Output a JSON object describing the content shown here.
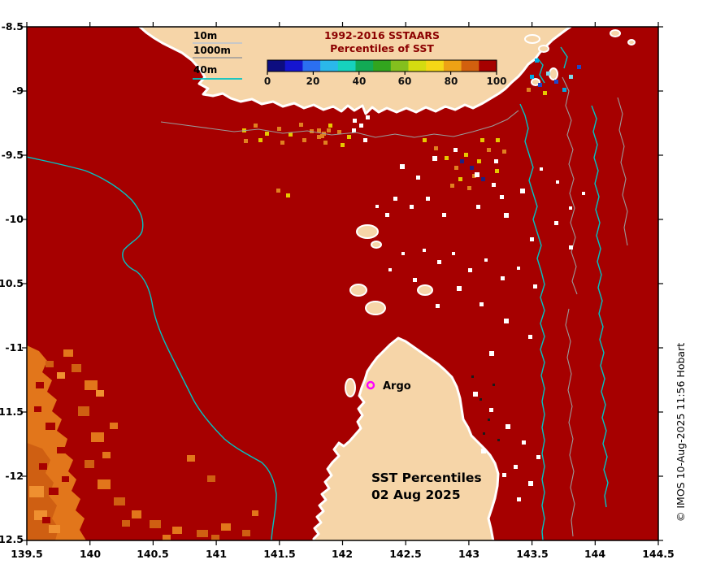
{
  "figure": {
    "title_line1": "1992-2016 SSTAARS",
    "title_line2": "Percentiles of SST",
    "caption_line1": "SST Percentiles",
    "caption_line2": "02 Aug 2025",
    "credit": "© IMOS 10-Aug-2025 11:56 Hobart"
  },
  "depth_legend": {
    "items": [
      {
        "label": "10m",
        "line_color": "#c8c8c8"
      },
      {
        "label": "1000m",
        "line_color": "#9a9a9a"
      },
      {
        "label": "40m",
        "line_color": "#00c4c4"
      }
    ]
  },
  "colorbar": {
    "ticks": [
      "0",
      "20",
      "40",
      "60",
      "80",
      "100"
    ],
    "range": [
      0,
      100
    ],
    "colors": [
      "#0d0d80",
      "#1515d0",
      "#2b6ff0",
      "#2ab8ea",
      "#16d2bd",
      "#12aa55",
      "#32a51e",
      "#84bf1e",
      "#d4dc10",
      "#f5d716",
      "#eda215",
      "#d2600e",
      "#a60000"
    ]
  },
  "annotations": {
    "argo_label": "Argo"
  },
  "axes": {
    "x_ticks": [
      "139.5",
      "140",
      "140.5",
      "141",
      "141.5",
      "142",
      "142.5",
      "143",
      "143.5",
      "144",
      "144.5"
    ],
    "y_ticks": [
      "-8.5",
      "-9",
      "-9.5",
      "-10",
      "-10.5",
      "-11",
      "-11.5",
      "-12",
      "-12.5"
    ]
  },
  "colors": {
    "ocean_high_percentile": "#a60000",
    "land": "#f6d5a8",
    "coastline": "#ffffff",
    "contour_40m": "#00c4c4",
    "contour_gray": "#9a9a9a",
    "low_percentile_orange": "#e2761b",
    "argo_marker": "#ff00ff",
    "title_text": "#8b0000"
  },
  "chart_data": {
    "type": "heatmap",
    "title": "1992-2016 SSTAARS Percentiles of SST",
    "caption": "SST Percentiles 02 Aug 2025",
    "x_range": [
      139.5,
      144.5
    ],
    "y_range": [
      -12.5,
      -8.5
    ],
    "x_ticks": [
      139.5,
      140,
      140.5,
      141,
      141.5,
      142,
      142.5,
      143,
      143.5,
      144,
      144.5
    ],
    "y_ticks": [
      -8.5,
      -9,
      -9.5,
      -10,
      -10.5,
      -11,
      -11.5,
      -12,
      -12.5
    ],
    "colorbar": {
      "label": "Percentiles of SST",
      "range": [
        0,
        100
      ],
      "tick_step": 20
    },
    "field_summary": "Nearly all ocean pixels at 95-100th percentile (dark red); patch of 70-90th percentile (orange) in the south-west corner; scattered mixed-percentile pixels along the northern coast and in the north-east",
    "markers": [
      {
        "label": "Argo",
        "lon": 142.2,
        "lat": -11.3
      }
    ],
    "contour_legend_depths_m": [
      10,
      1000,
      40
    ]
  }
}
